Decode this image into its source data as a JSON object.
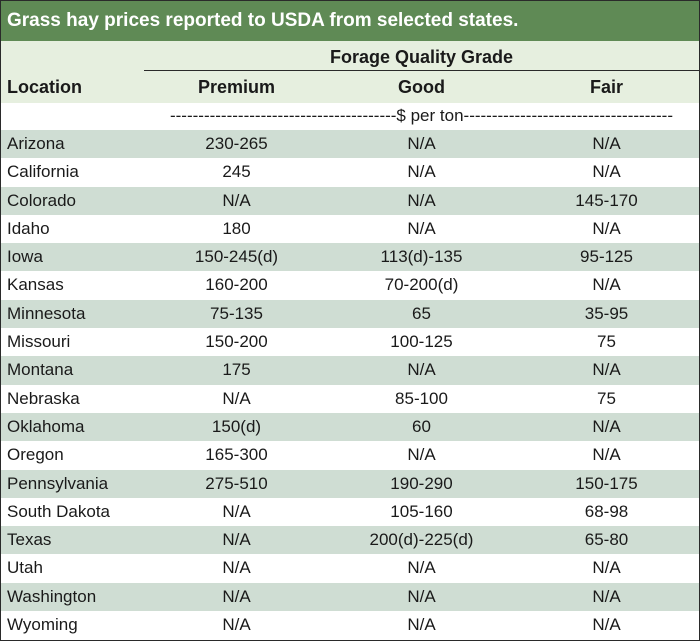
{
  "title": "Grass hay prices reported to USDA from selected states.",
  "header": {
    "group_label": "Forage Quality Grade",
    "location_label": "Location",
    "columns": [
      "Premium",
      "Good",
      "Fair"
    ],
    "units": "----------------------------------------$ per ton-------------------------------------"
  },
  "rows": [
    {
      "location": "Arizona",
      "premium": "230-265",
      "good": "N/A",
      "fair": "N/A"
    },
    {
      "location": "California",
      "premium": "245",
      "good": "N/A",
      "fair": "N/A"
    },
    {
      "location": "Colorado",
      "premium": "N/A",
      "good": "N/A",
      "fair": "145-170"
    },
    {
      "location": "Idaho",
      "premium": "180",
      "good": "N/A",
      "fair": "N/A"
    },
    {
      "location": "Iowa",
      "premium": "150-245(d)",
      "good": "113(d)-135",
      "fair": "95-125"
    },
    {
      "location": "Kansas",
      "premium": "160-200",
      "good": "70-200(d)",
      "fair": "N/A"
    },
    {
      "location": "Minnesota",
      "premium": "75-135",
      "good": "65",
      "fair": "35-95"
    },
    {
      "location": "Missouri",
      "premium": "150-200",
      "good": "100-125",
      "fair": "75"
    },
    {
      "location": "Montana",
      "premium": "175",
      "good": "N/A",
      "fair": "N/A"
    },
    {
      "location": "Nebraska",
      "premium": "N/A",
      "good": "85-100",
      "fair": "75"
    },
    {
      "location": "Oklahoma",
      "premium": "150(d)",
      "good": "60",
      "fair": "N/A"
    },
    {
      "location": "Oregon",
      "premium": "165-300",
      "good": "N/A",
      "fair": "N/A"
    },
    {
      "location": "Pennsylvania",
      "premium": "275-510",
      "good": "190-290",
      "fair": "150-175"
    },
    {
      "location": "South Dakota",
      "premium": "N/A",
      "good": "105-160",
      "fair": "68-98"
    },
    {
      "location": "Texas",
      "premium": "N/A",
      "good": "200(d)-225(d)",
      "fair": "65-80"
    },
    {
      "location": "Utah",
      "premium": "N/A",
      "good": "N/A",
      "fair": "N/A"
    },
    {
      "location": "Washington",
      "premium": "N/A",
      "good": "N/A",
      "fair": "N/A"
    },
    {
      "location": "Wyoming",
      "premium": "N/A",
      "good": "N/A",
      "fair": "N/A"
    }
  ],
  "colors": {
    "title_bg": "#5f8a55",
    "header_bg": "#e6efdf",
    "stripe": "#cfddd3",
    "text": "#1a1a1a"
  }
}
